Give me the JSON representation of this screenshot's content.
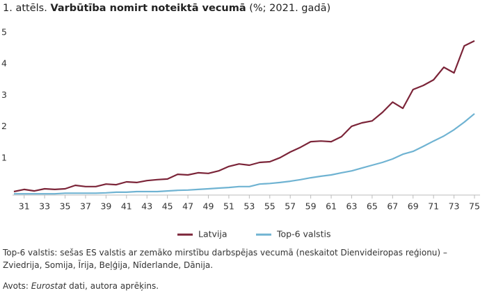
{
  "chart_data": {
    "type": "line",
    "title_prefix": "1. attēls.",
    "title": "Varbūtība nomirt noteiktā vecumā",
    "title_suffix": "(%; 2021. gadā)",
    "x": [
      30,
      31,
      32,
      33,
      34,
      35,
      36,
      37,
      38,
      39,
      40,
      41,
      42,
      43,
      44,
      45,
      46,
      47,
      48,
      49,
      50,
      51,
      52,
      53,
      54,
      55,
      56,
      57,
      58,
      59,
      60,
      61,
      62,
      63,
      64,
      65,
      66,
      67,
      68,
      69,
      70,
      71,
      72,
      73,
      74,
      75
    ],
    "xlim": [
      30,
      75
    ],
    "xticks": [
      31,
      33,
      35,
      37,
      39,
      41,
      43,
      45,
      47,
      49,
      51,
      53,
      55,
      57,
      59,
      61,
      63,
      65,
      67,
      69,
      71,
      73,
      75
    ],
    "ylim": [
      0,
      5.25
    ],
    "yticks": [
      1,
      2,
      3,
      4,
      5
    ],
    "legend": "bottom",
    "series": [
      {
        "name": "Latvija",
        "color": "#7b2438",
        "values": [
          0.11,
          0.18,
          0.13,
          0.2,
          0.18,
          0.2,
          0.31,
          0.27,
          0.27,
          0.35,
          0.33,
          0.42,
          0.4,
          0.46,
          0.49,
          0.51,
          0.66,
          0.64,
          0.71,
          0.69,
          0.77,
          0.91,
          0.99,
          0.95,
          1.04,
          1.06,
          1.19,
          1.37,
          1.52,
          1.7,
          1.72,
          1.7,
          1.86,
          2.19,
          2.3,
          2.36,
          2.63,
          2.96,
          2.76,
          3.36,
          3.49,
          3.67,
          4.07,
          3.89,
          4.75,
          4.91
        ]
      },
      {
        "name": "Top-6 valstis",
        "color": "#6fb3d2",
        "values": [
          0.04,
          0.04,
          0.04,
          0.04,
          0.04,
          0.06,
          0.06,
          0.06,
          0.06,
          0.07,
          0.09,
          0.09,
          0.11,
          0.11,
          0.11,
          0.13,
          0.15,
          0.16,
          0.18,
          0.2,
          0.22,
          0.24,
          0.27,
          0.27,
          0.35,
          0.37,
          0.4,
          0.44,
          0.49,
          0.55,
          0.6,
          0.64,
          0.71,
          0.77,
          0.86,
          0.95,
          1.04,
          1.15,
          1.3,
          1.39,
          1.55,
          1.72,
          1.88,
          2.08,
          2.32,
          2.59
        ]
      }
    ],
    "footnote": "Top-6 valstis: sešas ES valstis ar zemāko mirstību darbspējas vecumā (neskaitot Dienvideiropas reģionu) – Zviedrija, Somija, Īrija, Beļģija, Nīderlande, Dānija.",
    "source_prefix": "Avots:",
    "source_name": "Eurostat",
    "source_suffix": "dati, autora aprēķins."
  }
}
